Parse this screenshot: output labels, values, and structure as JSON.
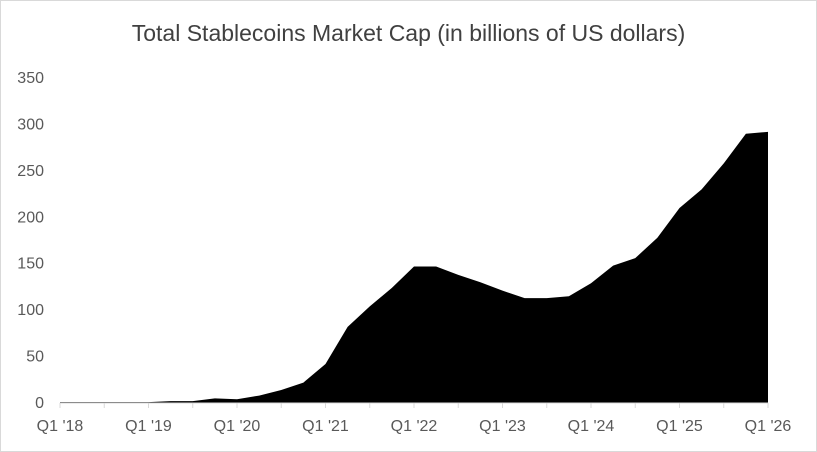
{
  "chart_data": {
    "type": "area",
    "title": "Total Stablecoins Market Cap (in billions of US dollars)",
    "xlabel": "",
    "ylabel": "",
    "ylim": [
      0,
      350
    ],
    "yticks": [
      0,
      50,
      100,
      150,
      200,
      250,
      300,
      350
    ],
    "grid": false,
    "legend": "none",
    "x_tick_labels": [
      "Q1 '18",
      "Q1 '19",
      "Q1 '20",
      "Q1 '21",
      "Q1 '22",
      "Q1 '23",
      "Q1 '24",
      "Q1 '25",
      "Q1 '26"
    ],
    "x": [
      "Q1 '18",
      "Q2 '18",
      "Q3 '18",
      "Q4 '18",
      "Q1 '19",
      "Q2 '19",
      "Q3 '19",
      "Q4 '19",
      "Q1 '20",
      "Q2 '20",
      "Q3 '20",
      "Q4 '20",
      "Q1 '21",
      "Q2 '21",
      "Q3 '21",
      "Q4 '21",
      "Q1 '22",
      "Q2 '22",
      "Q3 '22",
      "Q4 '22",
      "Q1 '23",
      "Q2 '23",
      "Q3 '23",
      "Q4 '23",
      "Q1 '24",
      "Q2 '24",
      "Q3 '24",
      "Q4 '24",
      "Q1 '25",
      "Q2 '25",
      "Q3 '25",
      "Q4 '25",
      "Q1 '26"
    ],
    "series": [
      {
        "values": [
          1,
          1,
          1,
          1,
          1,
          2,
          2,
          5,
          4,
          8,
          14,
          22,
          42,
          82,
          104,
          124,
          147,
          147,
          138,
          130,
          121,
          113,
          113,
          115,
          129,
          148,
          156,
          178,
          210,
          230,
          258,
          290,
          292
        ]
      }
    ],
    "colors": {
      "area": "#000000",
      "axis": "#d9d9d9",
      "text": "#595959",
      "title": "#404040"
    }
  }
}
